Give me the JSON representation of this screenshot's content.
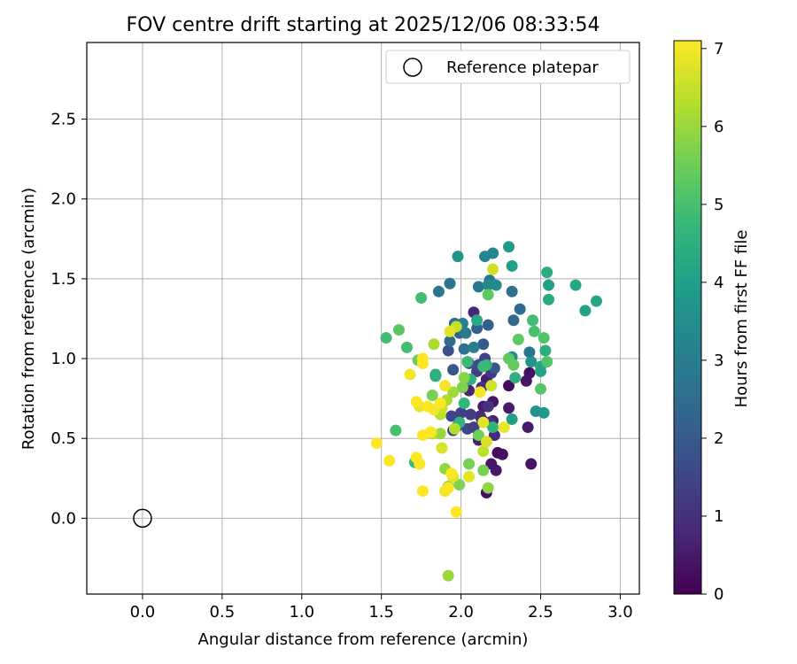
{
  "chart_data": {
    "type": "scatter",
    "title": "FOV centre drift starting at 2025/12/06 08:33:54",
    "xlabel": "Angular distance from reference (arcmin)",
    "ylabel": "Rotation from reference (arcmin)",
    "xlim": [
      -0.35,
      3.12
    ],
    "ylim": [
      -0.475,
      2.98
    ],
    "xticks": [
      0.0,
      0.5,
      1.0,
      1.5,
      2.0,
      2.5,
      3.0
    ],
    "xtick_labels": [
      "0.0",
      "0.5",
      "1.0",
      "1.5",
      "2.0",
      "2.5",
      "3.0"
    ],
    "yticks": [
      0.0,
      0.5,
      1.0,
      1.5,
      2.0,
      2.5
    ],
    "ytick_labels": [
      "0.0",
      "0.5",
      "1.0",
      "1.5",
      "2.0",
      "2.5"
    ],
    "grid": true,
    "legend": {
      "position": "top-right",
      "entries": [
        "Reference platepar"
      ]
    },
    "reference_point": {
      "x": 0.0,
      "y": 0.0,
      "label": "Reference platepar"
    },
    "colorbar": {
      "label": "Hours from first FF file",
      "range": [
        0,
        7.1
      ],
      "ticks": [
        0,
        1,
        2,
        3,
        4,
        5,
        6,
        7
      ],
      "tick_labels": [
        "0",
        "1",
        "2",
        "3",
        "4",
        "5",
        "6",
        "7"
      ],
      "colormap": [
        "#440154",
        "#482878",
        "#3e4989",
        "#31688e",
        "#26828e",
        "#1f9e89",
        "#35b779",
        "#6ece58",
        "#b5de2b",
        "#fde725"
      ]
    },
    "points": [
      [
        2.3,
        0.83,
        0.2
      ],
      [
        2.23,
        0.41,
        0.2
      ],
      [
        2.26,
        0.4,
        0.3
      ],
      [
        2.43,
        0.91,
        0.3
      ],
      [
        2.3,
        0.69,
        0.5
      ],
      [
        2.44,
        0.34,
        0.4
      ],
      [
        2.42,
        0.57,
        0.5
      ],
      [
        2.41,
        0.86,
        0.4
      ],
      [
        2.22,
        0.3,
        0.5
      ],
      [
        2.19,
        0.34,
        0.4
      ],
      [
        2.16,
        0.16,
        0.3
      ],
      [
        2.14,
        0.7,
        0.5
      ],
      [
        2.16,
        0.87,
        0.6
      ],
      [
        2.2,
        0.73,
        0.4
      ],
      [
        2.11,
        0.49,
        0.7
      ],
      [
        2.13,
        0.62,
        0.6
      ],
      [
        2.08,
        1.29,
        0.8
      ],
      [
        2.05,
        0.8,
        0.7
      ],
      [
        2.17,
        0.7,
        1.0
      ],
      [
        2.2,
        0.61,
        0.6
      ],
      [
        2.21,
        0.52,
        0.8
      ],
      [
        2.12,
        0.64,
        0.9
      ],
      [
        2.18,
        0.6,
        1.1
      ],
      [
        2.13,
        0.82,
        1.0
      ],
      [
        2.19,
        0.91,
        1.2
      ],
      [
        2.1,
        0.92,
        1.3
      ],
      [
        2.15,
        1.0,
        1.4
      ],
      [
        2.03,
        0.87,
        1.2
      ],
      [
        2.06,
        0.65,
        1.3
      ],
      [
        2.0,
        0.66,
        1.4
      ],
      [
        1.94,
        0.64,
        1.5
      ],
      [
        1.95,
        0.55,
        1.3
      ],
      [
        2.04,
        0.56,
        1.5
      ],
      [
        1.98,
        0.58,
        1.6
      ],
      [
        2.08,
        0.57,
        1.4
      ],
      [
        2.11,
        0.96,
        1.6
      ],
      [
        1.92,
        1.05,
        1.8
      ],
      [
        1.95,
        0.93,
        1.9
      ],
      [
        2.05,
        0.97,
        1.8
      ],
      [
        2.14,
        1.09,
        2.0
      ],
      [
        2.17,
        1.21,
        2.1
      ],
      [
        2.1,
        1.19,
        2.2
      ],
      [
        2.21,
        0.94,
        1.9
      ],
      [
        2.33,
        1.24,
        2.4
      ],
      [
        2.37,
        1.31,
        2.5
      ],
      [
        2.43,
        1.04,
        2.7
      ],
      [
        2.32,
        1.42,
        2.6
      ],
      [
        2.11,
        1.45,
        2.8
      ],
      [
        2.18,
        1.49,
        2.9
      ],
      [
        1.93,
        1.11,
        2.5
      ],
      [
        1.99,
        1.16,
        2.3
      ],
      [
        1.96,
        1.22,
        2.5
      ],
      [
        2.02,
        1.06,
        2.6
      ],
      [
        1.93,
        1.47,
        2.7
      ],
      [
        1.86,
        1.42,
        2.8
      ],
      [
        2.03,
        1.16,
        2.9
      ],
      [
        2.08,
        1.07,
        3.0
      ],
      [
        2.01,
        1.22,
        3.1
      ],
      [
        2.15,
        1.64,
        3.2
      ],
      [
        2.2,
        1.66,
        3.3
      ],
      [
        1.98,
        1.64,
        3.6
      ],
      [
        2.22,
        1.46,
        3.4
      ],
      [
        2.17,
        1.46,
        3.4
      ],
      [
        2.32,
        1.01,
        3.5
      ],
      [
        2.44,
        0.98,
        3.6
      ],
      [
        2.47,
        0.67,
        3.7
      ],
      [
        2.52,
        0.66,
        3.8
      ],
      [
        2.3,
        1.7,
        3.9
      ],
      [
        2.32,
        1.58,
        4.0
      ],
      [
        2.55,
        1.46,
        4.0
      ],
      [
        2.72,
        1.46,
        4.2
      ],
      [
        2.78,
        1.3,
        4.1
      ],
      [
        2.85,
        1.36,
        4.2
      ],
      [
        2.55,
        1.37,
        4.3
      ],
      [
        2.54,
        1.54,
        4.4
      ],
      [
        2.53,
        1.05,
        4.4
      ],
      [
        2.5,
        0.95,
        4.2
      ],
      [
        2.5,
        0.92,
        4.1
      ],
      [
        2.34,
        0.88,
        4.5
      ],
      [
        2.32,
        0.62,
        4.0
      ],
      [
        2.2,
        0.57,
        4.6
      ],
      [
        2.16,
        0.96,
        4.6
      ],
      [
        2.1,
        1.24,
        4.3
      ],
      [
        2.14,
        0.95,
        4.8
      ],
      [
        2.04,
        0.98,
        4.8
      ],
      [
        2.02,
        0.72,
        4.7
      ],
      [
        2.06,
        0.87,
        4.5
      ],
      [
        1.99,
        0.6,
        4.6
      ],
      [
        1.84,
        0.9,
        4.4
      ],
      [
        1.84,
        0.89,
        4.5
      ],
      [
        1.53,
        1.13,
        4.9
      ],
      [
        1.66,
        1.07,
        4.9
      ],
      [
        1.75,
        1.38,
        4.9
      ],
      [
        1.59,
        0.55,
        5.0
      ],
      [
        1.71,
        0.35,
        4.8
      ],
      [
        2.45,
        1.24,
        4.9
      ],
      [
        2.46,
        1.17,
        5.0
      ],
      [
        2.52,
        1.13,
        5.1
      ],
      [
        2.54,
        0.98,
        5.1
      ],
      [
        2.5,
        0.81,
        5.2
      ],
      [
        2.36,
        1.12,
        5.3
      ],
      [
        2.3,
        1.0,
        5.3
      ],
      [
        2.33,
        0.96,
        5.4
      ],
      [
        2.17,
        1.4,
        5.3
      ],
      [
        2.11,
        0.52,
        5.5
      ],
      [
        2.14,
        0.3,
        5.6
      ],
      [
        1.61,
        1.18,
        5.2
      ],
      [
        1.73,
        0.99,
        5.5
      ],
      [
        1.82,
        0.77,
        5.6
      ],
      [
        2.01,
        0.82,
        5.7
      ],
      [
        2.02,
        0.88,
        5.8
      ],
      [
        2.05,
        0.34,
        5.6
      ],
      [
        1.99,
        0.21,
        5.7
      ],
      [
        1.9,
        0.31,
        5.9
      ],
      [
        1.92,
        0.2,
        6.0
      ],
      [
        2.17,
        0.19,
        5.9
      ],
      [
        1.95,
        0.79,
        6.1
      ],
      [
        1.87,
        0.53,
        6.0
      ],
      [
        1.91,
        0.74,
        6.2
      ],
      [
        1.82,
        0.53,
        6.3
      ],
      [
        1.87,
        0.65,
        6.4
      ],
      [
        1.96,
        0.56,
        6.3
      ],
      [
        1.83,
        1.09,
        6.2
      ],
      [
        1.88,
        0.69,
        6.5
      ],
      [
        2.14,
        0.42,
        6.4
      ],
      [
        1.92,
        -0.36,
        6.0
      ],
      [
        2.19,
        0.83,
        6.6
      ],
      [
        2.16,
        0.48,
        6.7
      ],
      [
        2.27,
        0.57,
        6.9
      ],
      [
        2.14,
        0.6,
        6.8
      ],
      [
        2.12,
        0.79,
        7.0
      ],
      [
        2.2,
        1.56,
        6.6
      ],
      [
        1.97,
        1.2,
        6.5
      ],
      [
        1.93,
        1.17,
        6.8
      ],
      [
        1.88,
        0.44,
        6.7
      ],
      [
        1.74,
        0.7,
        6.9
      ],
      [
        1.95,
        0.26,
        6.8
      ],
      [
        2.05,
        0.26,
        6.8
      ],
      [
        1.9,
        0.17,
        7.0
      ],
      [
        1.97,
        0.04,
        7.1
      ],
      [
        1.76,
        0.17,
        7.1
      ],
      [
        1.68,
        0.9,
        7.0
      ],
      [
        1.76,
        0.97,
        7.1
      ],
      [
        1.76,
        1.0,
        7.1
      ],
      [
        1.72,
        0.73,
        7.1
      ],
      [
        1.79,
        0.7,
        7.1
      ],
      [
        1.83,
        0.68,
        7.0
      ],
      [
        1.87,
        0.72,
        7.1
      ],
      [
        1.9,
        0.83,
        7.0
      ],
      [
        1.76,
        0.52,
        7.1
      ],
      [
        1.81,
        0.54,
        7.1
      ],
      [
        1.72,
        0.38,
        7.1
      ],
      [
        1.74,
        0.34,
        7.1
      ],
      [
        1.55,
        0.36,
        7.1
      ],
      [
        1.47,
        0.47,
        7.1
      ],
      [
        1.94,
        0.28,
        7.1
      ],
      [
        1.92,
        0.19,
        7.1
      ]
    ]
  }
}
